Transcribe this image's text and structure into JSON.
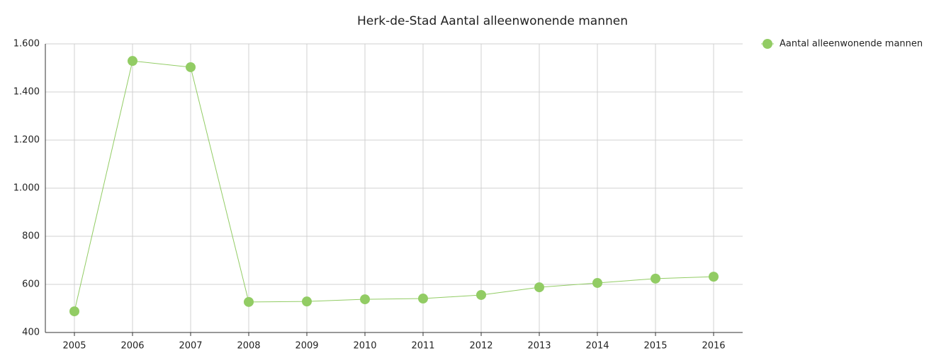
{
  "chart_data": {
    "type": "line",
    "title": "Herk-de-Stad  Aantal alleenwonende mannen",
    "categories": [
      "2005",
      "2006",
      "2007",
      "2008",
      "2009",
      "2010",
      "2011",
      "2012",
      "2013",
      "2014",
      "2015",
      "2016"
    ],
    "series": [
      {
        "name": "Aantal alleenwonende mannen",
        "color": "#92cc64",
        "values": [
          488,
          1529,
          1503,
          527,
          529,
          538,
          541,
          556,
          588,
          606,
          624,
          632
        ]
      }
    ],
    "ylim": [
      400,
      1600
    ],
    "yticks": [
      400,
      600,
      800,
      {
        "value": 1000,
        "label": "1.000"
      },
      {
        "value": 1200,
        "label": "1.200"
      },
      {
        "value": 1400,
        "label": "1.400"
      },
      {
        "value": 1600,
        "label": "1.600"
      }
    ],
    "grid": true,
    "legend": "right"
  }
}
